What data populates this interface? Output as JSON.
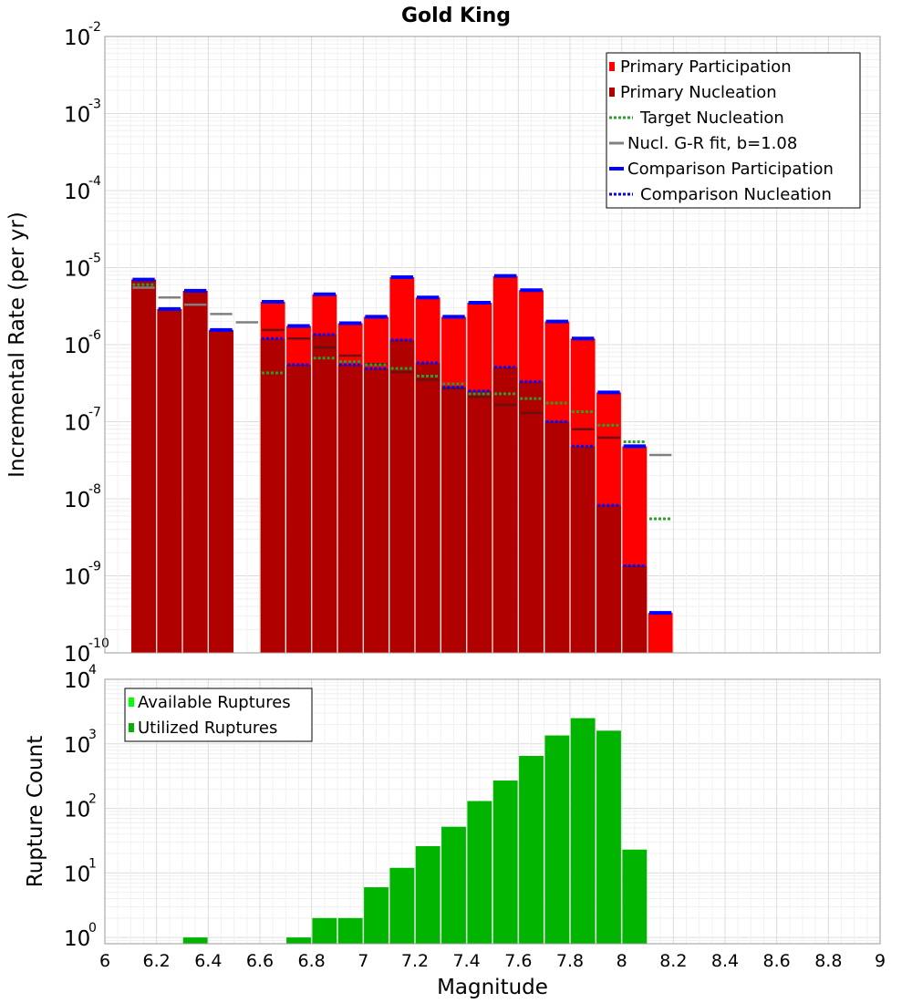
{
  "title": "Gold King",
  "colors": {
    "primary_participation": "#ff0000",
    "primary_nucleation": "#b00000",
    "target_nucleation": "#2aa02a",
    "gr_fit": "#808080",
    "comparison_participation": "#0000ff",
    "comparison_nucleation": "#0000ff",
    "available_ruptures": "#00ff00",
    "utilized_ruptures": "#00b400",
    "grid": "#e6e6e6"
  },
  "chart_data": [
    {
      "type": "bar",
      "name": "rate",
      "ylabel": "Incremental Rate (per yr)",
      "ylim": [
        1e-10,
        0.01
      ],
      "yscale": "log",
      "xlim": [
        6.0,
        9.0
      ],
      "y_ticks": [
        {
          "base": "10",
          "exp": "-10",
          "value": 1e-10
        },
        {
          "base": "10",
          "exp": "-9",
          "value": 1e-09
        },
        {
          "base": "10",
          "exp": "-8",
          "value": 1e-08
        },
        {
          "base": "10",
          "exp": "-7",
          "value": 1e-07
        },
        {
          "base": "10",
          "exp": "-6",
          "value": 1e-06
        },
        {
          "base": "10",
          "exp": "-5",
          "value": 1e-05
        },
        {
          "base": "10",
          "exp": "-4",
          "value": 0.0001
        },
        {
          "base": "10",
          "exp": "-3",
          "value": 0.001
        },
        {
          "base": "10",
          "exp": "-2",
          "value": 0.01
        }
      ],
      "legend": {
        "placement": "top-right",
        "entries": [
          {
            "label": "Primary Participation",
            "style": "square",
            "color_key": "primary_participation"
          },
          {
            "label": "Primary Nucleation",
            "style": "square",
            "color_key": "primary_nucleation"
          },
          {
            "label": "Target Nucleation",
            "style": "dotted",
            "color_key": "target_nucleation"
          },
          {
            "label": "Nucl. G-R fit, b=1.08",
            "style": "line",
            "color_key": "gr_fit"
          },
          {
            "label": "Comparison Participation",
            "style": "thick",
            "color_key": "comparison_participation"
          },
          {
            "label": "Comparison Nucleation",
            "style": "dotted",
            "color_key": "comparison_nucleation"
          }
        ]
      },
      "x": [
        6.15,
        6.25,
        6.35,
        6.45,
        6.55,
        6.65,
        6.75,
        6.85,
        6.95,
        7.05,
        7.15,
        7.25,
        7.35,
        7.45,
        7.55,
        7.65,
        7.75,
        7.85,
        7.95,
        8.05,
        8.15
      ],
      "series": [
        {
          "name": "Primary Participation",
          "values": [
            7e-06,
            2.9e-06,
            5e-06,
            1.55e-06,
            null,
            3.6e-06,
            1.75e-06,
            4.5e-06,
            1.9e-06,
            2.3e-06,
            7.5e-06,
            4.1e-06,
            2.3e-06,
            3.5e-06,
            7.8e-06,
            5.1e-06,
            2e-06,
            1.2e-06,
            2.4e-07,
            4.8e-08,
            3.3e-10
          ]
        },
        {
          "name": "Primary Nucleation",
          "values": [
            7e-06,
            2.9e-06,
            5e-06,
            1.55e-06,
            null,
            1.2e-06,
            5.5e-07,
            1.35e-06,
            5.5e-07,
            4.9e-07,
            1.15e-06,
            5.8e-07,
            2.8e-07,
            2.5e-07,
            5.1e-07,
            3.3e-07,
            1e-07,
            4.8e-08,
            8.2e-09,
            1.35e-09,
            null
          ]
        },
        {
          "name": "Target Nucleation",
          "values": [
            6e-06,
            null,
            null,
            null,
            null,
            4.3e-07,
            null,
            6.7e-07,
            6e-07,
            5.5e-07,
            4.9e-07,
            3.9e-07,
            3.1e-07,
            2.3e-07,
            2.3e-07,
            2e-07,
            1.75e-07,
            1.35e-07,
            9e-08,
            5.5e-08,
            5.5e-09
          ]
        },
        {
          "name": "Nucl. G-R fit, b=1.08",
          "values": [
            5.5e-06,
            4.1e-06,
            3.3e-06,
            2.5e-06,
            1.95e-06,
            1.55e-06,
            1.2e-06,
            9.2e-07,
            7.2e-07,
            5.6e-07,
            4.4e-07,
            3.5e-07,
            2.7e-07,
            2.1e-07,
            1.65e-07,
            1.3e-07,
            null,
            8e-08,
            6.2e-08,
            null,
            3.7e-08
          ]
        },
        {
          "name": "Comparison Participation",
          "values": [
            7e-06,
            2.9e-06,
            5e-06,
            1.55e-06,
            null,
            3.6e-06,
            1.75e-06,
            4.5e-06,
            1.9e-06,
            2.3e-06,
            7.5e-06,
            4.1e-06,
            2.3e-06,
            3.5e-06,
            7.8e-06,
            5.1e-06,
            2e-06,
            1.2e-06,
            2.4e-07,
            4.8e-08,
            3.3e-10
          ]
        },
        {
          "name": "Comparison Nucleation",
          "values": [
            null,
            null,
            null,
            1.55e-06,
            null,
            1.2e-06,
            5.5e-07,
            1.35e-06,
            5.5e-07,
            4.9e-07,
            1.15e-06,
            5.8e-07,
            2.8e-07,
            2.5e-07,
            5.1e-07,
            3.3e-07,
            1e-07,
            4.8e-08,
            8.2e-09,
            1.35e-09,
            null
          ]
        }
      ]
    },
    {
      "type": "bar",
      "name": "count",
      "ylabel": "Rupture Count",
      "xlabel": "Magnitude",
      "yscale": "log",
      "ylim": [
        0.8,
        10000
      ],
      "xlim": [
        6.0,
        9.0
      ],
      "y_ticks": [
        {
          "base": "10",
          "exp": "0",
          "value": 1
        },
        {
          "base": "10",
          "exp": "1",
          "value": 10
        },
        {
          "base": "10",
          "exp": "2",
          "value": 100
        },
        {
          "base": "10",
          "exp": "3",
          "value": 1000
        },
        {
          "base": "10",
          "exp": "4",
          "value": 10000
        }
      ],
      "x_ticks": [
        "6",
        "6.2",
        "6.4",
        "6.6",
        "6.8",
        "7",
        "7.2",
        "7.4",
        "7.6",
        "7.8",
        "8",
        "8.2",
        "8.4",
        "8.6",
        "8.8",
        "9"
      ],
      "x_tick_values": [
        6.0,
        6.2,
        6.4,
        6.6,
        6.8,
        7.0,
        7.2,
        7.4,
        7.6,
        7.8,
        8.0,
        8.2,
        8.4,
        8.6,
        8.8,
        9.0
      ],
      "legend": {
        "placement": "top-left",
        "entries": [
          {
            "label": "Available Ruptures",
            "style": "square",
            "color_key": "available_ruptures"
          },
          {
            "label": "Utilized Ruptures",
            "style": "square",
            "color_key": "utilized_ruptures"
          }
        ]
      },
      "x": [
        6.35,
        6.75,
        6.85,
        6.95,
        7.05,
        7.15,
        7.25,
        7.35,
        7.45,
        7.55,
        7.65,
        7.75,
        7.85,
        7.95,
        8.05
      ],
      "series": [
        {
          "name": "Utilized Ruptures",
          "values": [
            1,
            1,
            2,
            2,
            6,
            12,
            26,
            52,
            130,
            270,
            650,
            1350,
            2500,
            1600,
            23
          ]
        }
      ]
    }
  ]
}
